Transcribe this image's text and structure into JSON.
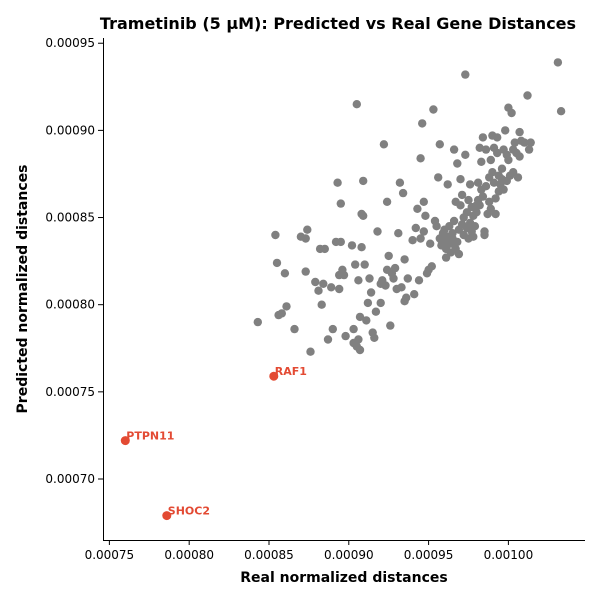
{
  "chart_data": {
    "type": "scatter",
    "title": "Trametinib (5 μM): Predicted vs Real Gene Distances",
    "xlabel": "Real normalized distances",
    "ylabel": "Predicted normalized distances",
    "xlim": [
      0.000746,
      0.001048
    ],
    "ylim": [
      0.000665,
      0.000953
    ],
    "xticks": [
      0.00075,
      0.0008,
      0.00085,
      0.0009,
      0.00095,
      0.001
    ],
    "xtick_labels": [
      "0.00075",
      "0.00080",
      "0.00085",
      "0.00090",
      "0.00095",
      "0.00100"
    ],
    "yticks": [
      0.0007,
      0.00075,
      0.0008,
      0.00085,
      0.0009,
      0.00095
    ],
    "ytick_labels": [
      "0.00070",
      "0.00075",
      "0.00080",
      "0.00085",
      "0.00090",
      "0.00095"
    ],
    "grid": false,
    "colors": {
      "points": "#808080",
      "highlight": "#e34a33"
    },
    "points": [
      [
        0.000843,
        0.00079
      ],
      [
        0.000854,
        0.00084
      ],
      [
        0.000855,
        0.000824
      ],
      [
        0.000856,
        0.000794
      ],
      [
        0.000858,
        0.000795
      ],
      [
        0.00086,
        0.000818
      ],
      [
        0.000861,
        0.000799
      ],
      [
        0.000866,
        0.000786
      ],
      [
        0.00087,
        0.000839
      ],
      [
        0.000873,
        0.000819
      ],
      [
        0.000873,
        0.000838
      ],
      [
        0.000874,
        0.000843
      ],
      [
        0.000876,
        0.000773
      ],
      [
        0.000879,
        0.000813
      ],
      [
        0.000881,
        0.000808
      ],
      [
        0.000882,
        0.000832
      ],
      [
        0.000883,
        0.0008
      ],
      [
        0.000884,
        0.000812
      ],
      [
        0.000885,
        0.000832
      ],
      [
        0.000887,
        0.00078
      ],
      [
        0.000889,
        0.00081
      ],
      [
        0.00089,
        0.000786
      ],
      [
        0.000892,
        0.000836
      ],
      [
        0.000893,
        0.00087
      ],
      [
        0.000894,
        0.000817
      ],
      [
        0.000894,
        0.000809
      ],
      [
        0.000895,
        0.000836
      ],
      [
        0.000895,
        0.000858
      ],
      [
        0.000896,
        0.00082
      ],
      [
        0.000897,
        0.000817
      ],
      [
        0.000898,
        0.000782
      ],
      [
        0.000902,
        0.000834
      ],
      [
        0.000903,
        0.000786
      ],
      [
        0.000903,
        0.000778
      ],
      [
        0.000904,
        0.000823
      ],
      [
        0.000905,
        0.000915
      ],
      [
        0.000905,
        0.000776
      ],
      [
        0.000906,
        0.000814
      ],
      [
        0.000906,
        0.00078
      ],
      [
        0.000907,
        0.000774
      ],
      [
        0.000907,
        0.000793
      ],
      [
        0.000908,
        0.000833
      ],
      [
        0.000908,
        0.000852
      ],
      [
        0.000909,
        0.000851
      ],
      [
        0.000909,
        0.000871
      ],
      [
        0.00091,
        0.000823
      ],
      [
        0.000911,
        0.000791
      ],
      [
        0.000912,
        0.000801
      ],
      [
        0.000913,
        0.000815
      ],
      [
        0.000914,
        0.000807
      ],
      [
        0.000915,
        0.000784
      ],
      [
        0.000916,
        0.000781
      ],
      [
        0.000917,
        0.000796
      ],
      [
        0.000918,
        0.000842
      ],
      [
        0.00092,
        0.000812
      ],
      [
        0.00092,
        0.000801
      ],
      [
        0.000921,
        0.000814
      ],
      [
        0.000922,
        0.000892
      ],
      [
        0.000923,
        0.000811
      ],
      [
        0.000924,
        0.00082
      ],
      [
        0.000924,
        0.000859
      ],
      [
        0.000925,
        0.000828
      ],
      [
        0.000926,
        0.000788
      ],
      [
        0.000927,
        0.000818
      ],
      [
        0.000928,
        0.000815
      ],
      [
        0.000929,
        0.000821
      ],
      [
        0.00093,
        0.000809
      ],
      [
        0.000931,
        0.000841
      ],
      [
        0.000932,
        0.00087
      ],
      [
        0.000933,
        0.00081
      ],
      [
        0.000934,
        0.000864
      ],
      [
        0.000935,
        0.000826
      ],
      [
        0.000935,
        0.000802
      ],
      [
        0.000936,
        0.000804
      ],
      [
        0.000937,
        0.000815
      ],
      [
        0.00094,
        0.000837
      ],
      [
        0.000941,
        0.000806
      ],
      [
        0.000942,
        0.000844
      ],
      [
        0.000943,
        0.000855
      ],
      [
        0.000944,
        0.000814
      ],
      [
        0.000945,
        0.000884
      ],
      [
        0.000945,
        0.000838
      ],
      [
        0.000946,
        0.000904
      ],
      [
        0.000947,
        0.000842
      ],
      [
        0.000947,
        0.000859
      ],
      [
        0.000948,
        0.000851
      ],
      [
        0.000949,
        0.000818
      ],
      [
        0.00095,
        0.00082
      ],
      [
        0.000951,
        0.000835
      ],
      [
        0.000952,
        0.000822
      ],
      [
        0.000953,
        0.000912
      ],
      [
        0.000954,
        0.000848
      ],
      [
        0.000955,
        0.000845
      ],
      [
        0.000956,
        0.000873
      ],
      [
        0.000957,
        0.000892
      ],
      [
        0.000957,
        0.000838
      ],
      [
        0.000958,
        0.000834
      ],
      [
        0.000958,
        0.000837
      ],
      [
        0.000959,
        0.000841
      ],
      [
        0.00096,
        0.000836
      ],
      [
        0.00096,
        0.000843
      ],
      [
        0.000961,
        0.000832
      ],
      [
        0.000961,
        0.000827
      ],
      [
        0.000962,
        0.000839
      ],
      [
        0.000962,
        0.000869
      ],
      [
        0.000963,
        0.000845
      ],
      [
        0.000964,
        0.000835
      ],
      [
        0.000964,
        0.00083
      ],
      [
        0.000965,
        0.000838
      ],
      [
        0.000965,
        0.000841
      ],
      [
        0.000966,
        0.000889
      ],
      [
        0.000966,
        0.000848
      ],
      [
        0.000967,
        0.000859
      ],
      [
        0.000967,
        0.000832
      ],
      [
        0.000968,
        0.000881
      ],
      [
        0.000968,
        0.000836
      ],
      [
        0.000969,
        0.000843
      ],
      [
        0.000969,
        0.000829
      ],
      [
        0.00097,
        0.000872
      ],
      [
        0.00097,
        0.000857
      ],
      [
        0.000971,
        0.000863
      ],
      [
        0.000971,
        0.000846
      ],
      [
        0.000972,
        0.00084
      ],
      [
        0.000972,
        0.00085
      ],
      [
        0.000973,
        0.000932
      ],
      [
        0.000973,
        0.000886
      ],
      [
        0.000974,
        0.000853
      ],
      [
        0.000974,
        0.000844
      ],
      [
        0.000975,
        0.000838
      ],
      [
        0.000975,
        0.00086
      ],
      [
        0.000976,
        0.000869
      ],
      [
        0.000976,
        0.000847
      ],
      [
        0.000977,
        0.000842
      ],
      [
        0.000977,
        0.000856
      ],
      [
        0.000978,
        0.000851
      ],
      [
        0.000978,
        0.000839
      ],
      [
        0.000979,
        0.000845
      ],
      [
        0.00098,
        0.000857
      ],
      [
        0.00098,
        0.000853
      ],
      [
        0.000981,
        0.00087
      ],
      [
        0.000981,
        0.00086
      ],
      [
        0.000982,
        0.00089
      ],
      [
        0.000982,
        0.000857
      ],
      [
        0.000983,
        0.000882
      ],
      [
        0.000983,
        0.000866
      ],
      [
        0.000984,
        0.000896
      ],
      [
        0.000984,
        0.000862
      ],
      [
        0.000985,
        0.000842
      ],
      [
        0.000985,
        0.00084
      ],
      [
        0.000986,
        0.000889
      ],
      [
        0.000986,
        0.000868
      ],
      [
        0.000987,
        0.000852
      ],
      [
        0.000988,
        0.000873
      ],
      [
        0.000988,
        0.000859
      ],
      [
        0.000989,
        0.000883
      ],
      [
        0.000989,
        0.000855
      ],
      [
        0.00099,
        0.000897
      ],
      [
        0.00099,
        0.000876
      ],
      [
        0.000991,
        0.00089
      ],
      [
        0.000991,
        0.00087
      ],
      [
        0.000992,
        0.000861
      ],
      [
        0.000992,
        0.000852
      ],
      [
        0.000993,
        0.000896
      ],
      [
        0.000993,
        0.000887
      ],
      [
        0.000994,
        0.000874
      ],
      [
        0.000994,
        0.000865
      ],
      [
        0.000995,
        0.000869
      ],
      [
        0.000996,
        0.000878
      ],
      [
        0.000996,
        0.000872
      ],
      [
        0.000997,
        0.000889
      ],
      [
        0.000997,
        0.000866
      ],
      [
        0.000998,
        0.0009
      ],
      [
        0.000999,
        0.000886
      ],
      [
        0.000999,
        0.000871
      ],
      [
        0.001,
        0.000913
      ],
      [
        0.001,
        0.000883
      ],
      [
        0.001001,
        0.000874
      ],
      [
        0.001002,
        0.00091
      ],
      [
        0.001003,
        0.000889
      ],
      [
        0.001003,
        0.000876
      ],
      [
        0.001004,
        0.000893
      ],
      [
        0.001005,
        0.000887
      ],
      [
        0.001006,
        0.000873
      ],
      [
        0.001007,
        0.000899
      ],
      [
        0.001007,
        0.000885
      ],
      [
        0.001008,
        0.000894
      ],
      [
        0.00101,
        0.000893
      ],
      [
        0.001012,
        0.00092
      ],
      [
        0.001013,
        0.000889
      ],
      [
        0.001014,
        0.000893
      ],
      [
        0.001031,
        0.000939
      ],
      [
        0.001033,
        0.000911
      ]
    ],
    "highlighted": [
      {
        "label": "RAF1",
        "x": 0.000853,
        "y": 0.000759
      },
      {
        "label": "PTPN11",
        "x": 0.00076,
        "y": 0.000722
      },
      {
        "label": "SHOC2",
        "x": 0.000786,
        "y": 0.000679
      }
    ]
  }
}
